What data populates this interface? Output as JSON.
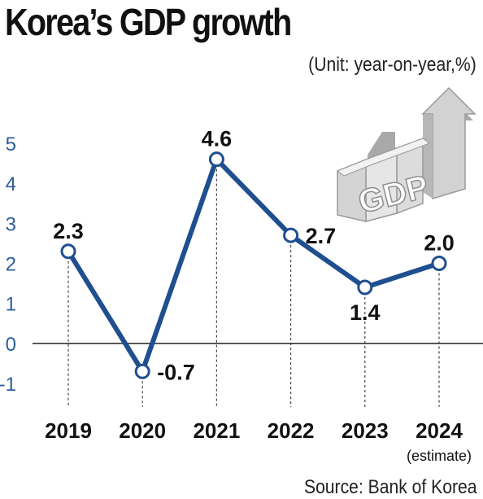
{
  "header": {
    "title": "Korea’s GDP growth",
    "unit": "(Unit: year-on-year,%)"
  },
  "footer": {
    "source": "Source: Bank of Korea"
  },
  "illustration": {
    "text": "GDP",
    "icon": "gdp-3d-arrow-icon"
  },
  "colors": {
    "line": "#1f4f8f",
    "axis_ticks": "#2f5e9a",
    "illustration": "#c8c8c8"
  },
  "chart_data": {
    "type": "line",
    "categories": [
      "2019",
      "2020",
      "2021",
      "2022",
      "2023",
      "2024"
    ],
    "category_notes": [
      "",
      "",
      "",
      "",
      "",
      "(estimate)"
    ],
    "values": [
      2.3,
      -0.7,
      4.6,
      2.7,
      1.4,
      2.0
    ],
    "data_labels": [
      "2.3",
      "-0.7",
      "4.6",
      "2.7",
      "1.4",
      "2.0"
    ],
    "label_side": [
      "above",
      "right",
      "above",
      "right",
      "below",
      "above"
    ],
    "yticks": [
      "5",
      "4",
      "3",
      "2",
      "1",
      "0",
      "-1"
    ],
    "ylim": [
      -1,
      5
    ],
    "title": "Korea’s GDP growth",
    "xlabel": "",
    "ylabel": "",
    "grid": false
  }
}
